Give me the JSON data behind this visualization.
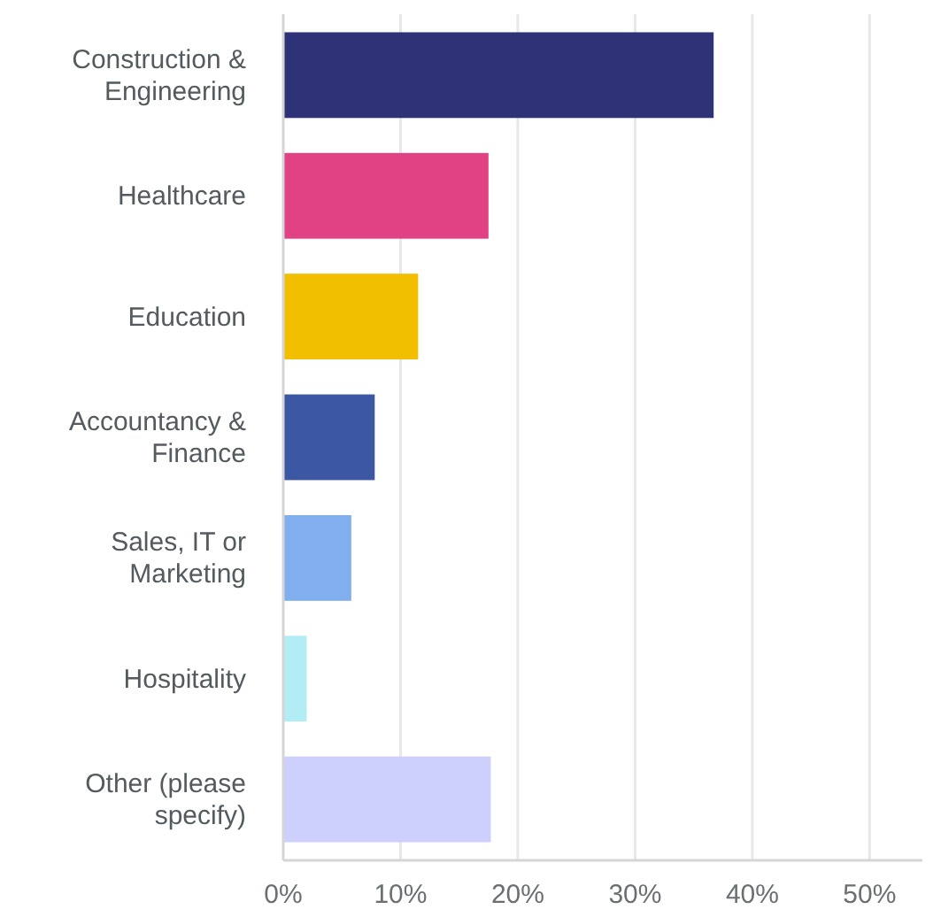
{
  "chart_data": {
    "type": "bar",
    "orientation": "horizontal",
    "categories": [
      "Construction & Engineering",
      "Healthcare",
      "Education",
      "Accountancy & Finance",
      "Sales, IT or Marketing",
      "Hospitality",
      "Other (please specify)"
    ],
    "values": [
      36.7,
      17.5,
      11.5,
      7.8,
      5.8,
      2.0,
      17.7
    ],
    "colors": [
      "#2e3277",
      "#e04284",
      "#f2be00",
      "#3d58a3",
      "#80aeee",
      "#b2ecf5",
      "#cdcffc"
    ],
    "xlim": [
      0,
      54.5
    ],
    "xticks": [
      {
        "value": 0,
        "label": "0%"
      },
      {
        "value": 10,
        "label": "10%"
      },
      {
        "value": 20,
        "label": "20%"
      },
      {
        "value": 30,
        "label": "30%"
      },
      {
        "value": 40,
        "label": "40%"
      },
      {
        "value": 50,
        "label": "50%"
      }
    ],
    "grid": "x"
  }
}
